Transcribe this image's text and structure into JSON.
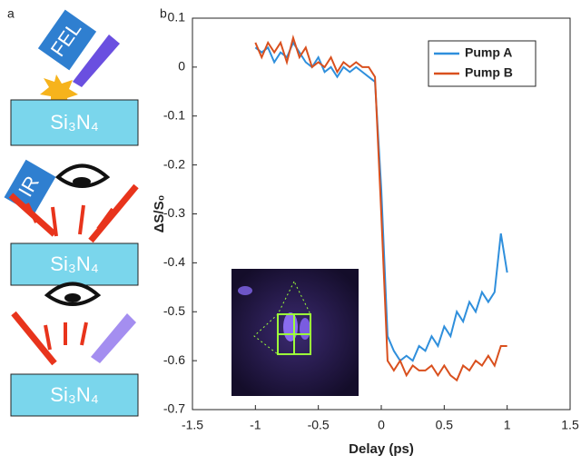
{
  "panel_labels": [
    "a",
    "b"
  ],
  "schematic": {
    "labels": [
      "FEL",
      "Si₃N₄",
      "IR",
      "Si₃N₄",
      "Si₃N₄"
    ]
  },
  "chart_data": {
    "type": "line",
    "x_label": "Delay (ps)",
    "y_label": "ΔS/S₀",
    "x": [
      -1,
      -0.95,
      -0.9,
      -0.85,
      -0.8,
      -0.75,
      -0.7,
      -0.65,
      -0.6,
      -0.55,
      -0.5,
      -0.45,
      -0.4,
      -0.35,
      -0.3,
      -0.25,
      -0.2,
      -0.15,
      -0.1,
      -0.05,
      0,
      0.05,
      0.1,
      0.15,
      0.2,
      0.25,
      0.3,
      0.35,
      0.4,
      0.45,
      0.5,
      0.55,
      0.6,
      0.65,
      0.7,
      0.75,
      0.8,
      0.85,
      0.9,
      0.95,
      1
    ],
    "series": [
      {
        "name": "Pump A",
        "color": "#2f8fdc",
        "values": [
          0.04,
          0.03,
          0.04,
          0.01,
          0.03,
          0.02,
          0.05,
          0.03,
          0.01,
          0.0,
          0.02,
          -0.01,
          0.0,
          -0.02,
          0.0,
          -0.01,
          0.0,
          -0.01,
          -0.02,
          -0.03,
          -0.25,
          -0.55,
          -0.58,
          -0.6,
          -0.59,
          -0.6,
          -0.57,
          -0.58,
          -0.55,
          -0.57,
          -0.53,
          -0.55,
          -0.5,
          -0.52,
          -0.48,
          -0.5,
          -0.46,
          -0.48,
          -0.46,
          -0.34,
          -0.42
        ]
      },
      {
        "name": "Pump B",
        "color": "#d9501e",
        "values": [
          0.05,
          0.02,
          0.05,
          0.03,
          0.05,
          0.01,
          0.06,
          0.02,
          0.04,
          0.0,
          0.01,
          0.0,
          0.02,
          -0.01,
          0.01,
          0.0,
          0.01,
          0.0,
          0.0,
          -0.02,
          -0.3,
          -0.6,
          -0.62,
          -0.6,
          -0.63,
          -0.61,
          -0.62,
          -0.62,
          -0.61,
          -0.63,
          -0.61,
          -0.63,
          -0.64,
          -0.61,
          -0.62,
          -0.6,
          -0.61,
          -0.59,
          -0.61,
          -0.57,
          -0.57
        ]
      }
    ],
    "xlim": [
      -1.5,
      1.5
    ],
    "xticks": [
      -1.5,
      -1,
      -0.5,
      0,
      0.5,
      1,
      1.5
    ],
    "ylim": [
      -0.7,
      0.1
    ],
    "yticks": [
      -0.7,
      -0.6,
      -0.5,
      -0.4,
      -0.3,
      -0.2,
      -0.1,
      0,
      0.1
    ],
    "grid": false,
    "legend": "upper right"
  }
}
